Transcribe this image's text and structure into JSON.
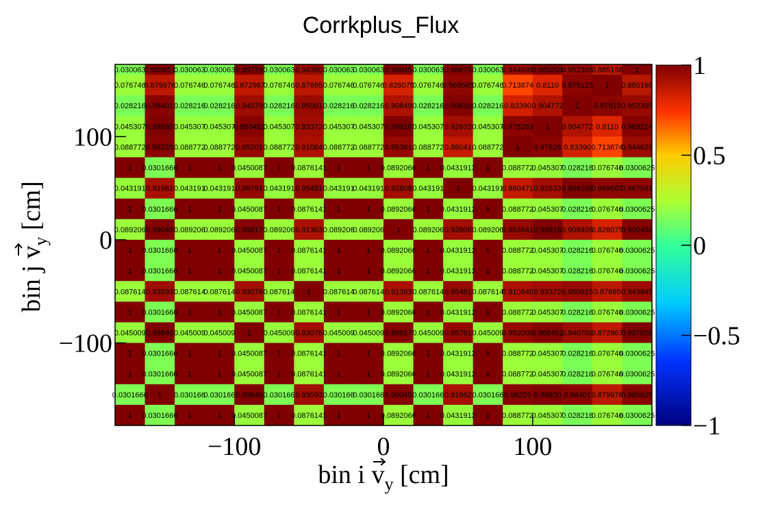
{
  "chart_data": {
    "type": "heatmap",
    "title": "Corrkplus_Flux",
    "xlabel_prefix": "bin i ",
    "xlabel_var": "v",
    "xlabel_sub": "y",
    "xlabel_unit": " [cm]",
    "ylabel_prefix": "bin j ",
    "ylabel_var": "v",
    "ylabel_sub": "y",
    "ylabel_unit": " [cm]",
    "xlim": [
      -180,
      180
    ],
    "ylim": [
      -180,
      170
    ],
    "xticks": [
      -100,
      0,
      100
    ],
    "xtick_labels": [
      "−100",
      "0",
      "100"
    ],
    "yticks": [
      -100,
      0,
      100
    ],
    "ytick_labels": [
      "−100",
      "0",
      "100"
    ],
    "zlim": [
      -1,
      1
    ],
    "colorbar_ticks": [
      -1,
      -0.5,
      0,
      0.5,
      1
    ],
    "colorbar_tick_labels": [
      "−1",
      "−0.5",
      "0",
      "0.5",
      "1"
    ],
    "x_bin_edges": [
      -180,
      -160,
      -140,
      -120,
      -100,
      -80,
      -60,
      -40,
      -20,
      0,
      20,
      40,
      60,
      80,
      100,
      120,
      140,
      160,
      180
    ],
    "y_bin_edges": [
      -180,
      -160,
      -140,
      -120,
      -100,
      -80,
      -60,
      -40,
      -20,
      0,
      20,
      40,
      60,
      80,
      100,
      120,
      140,
      160,
      170
    ],
    "rows_top_to_bottom": [
      [
        "0.030063",
        "0.985651",
        "0.030063",
        "0.030063",
        "0.99779",
        "0.030063",
        "0.94380",
        "0.030063",
        "0.030063",
        "0.99045",
        "0.030063",
        "0.98675",
        "0.030063",
        "0.944699",
        "0.989204",
        "0.952395",
        "0.885166",
        "1"
      ],
      [
        "0.076746",
        "0.879976",
        "0.076746",
        "0.076746",
        "0.872967",
        "0.076746",
        "0.87695",
        "0.076746",
        "0.076746",
        "0.826075",
        "0.076746",
        "0.969565",
        "0.076746",
        "0.713874",
        "0.8110",
        "0.979123",
        "1",
        "0.885166"
      ],
      [
        "0.028216",
        "0.98401",
        "0.028216",
        "0.028216",
        "0.94070",
        "0.028216",
        "0.95091",
        "0.028216",
        "0.028216",
        "0.90849",
        "0.028216",
        "0.99810",
        "0.028216",
        "0.83390",
        "0.904772",
        "1",
        "0.97912",
        "0.952395"
      ],
      [
        "0.045307",
        "0.99930",
        "0.045307",
        "0.045307",
        "0.988482",
        "0.045307",
        "0.93372",
        "0.045307",
        "0.045307",
        "0.99916",
        "0.045307",
        "0.92633",
        "0.045307",
        "0.978263",
        "1",
        "0.904772",
        "0.8110",
        "0.989214"
      ],
      [
        "0.088772",
        "0.98220",
        "0.088772",
        "0.088772",
        "0.95201",
        "0.088772",
        "0.91084",
        "0.088772",
        "0.088772",
        "0.95361",
        "0.088772",
        "0.86041",
        "0.088772",
        "1",
        "0.97826",
        "0.83390",
        "0.713874",
        "0.944629"
      ],
      [
        "1",
        "0.0301666",
        "1",
        "1",
        "0.0450087",
        "1",
        "0.0876141",
        "1",
        "1",
        "0.0892066",
        "1",
        "0.0431912",
        "1",
        "0.088772",
        "0.045307",
        "0.028216",
        "0.076746",
        "0.0300625"
      ],
      [
        "0.043191",
        "0.91962",
        "0.043191",
        "0.043191",
        "0.95791",
        "0.043191",
        "0.95481",
        "0.043191",
        "0.043191",
        "0.92808",
        "0.043191",
        "1",
        "0.043191",
        "0.860471",
        "0.92633",
        "0.998102",
        "0.969565",
        "0.967581"
      ],
      [
        "1",
        "0.0301666",
        "1",
        "1",
        "0.0450087",
        "1",
        "0.0876141",
        "1",
        "1",
        "0.0892066",
        "1",
        "0.0431912",
        "1",
        "0.088772",
        "0.045307",
        "0.028216",
        "0.076746",
        "0.0300625"
      ],
      [
        "0.089206",
        "0.99045",
        "0.089206",
        "0.089206",
        "0.98917",
        "0.089206",
        "0.91363",
        "0.089206",
        "0.089206",
        "1",
        "0.089206",
        "0.92808",
        "0.089206",
        "0.953641",
        "0.99916",
        "0.908409",
        "0.826075",
        "0.990456"
      ],
      [
        "1",
        "0.0301666",
        "1",
        "1",
        "0.0450087",
        "1",
        "0.0876141",
        "1",
        "1",
        "0.0892066",
        "1",
        "0.0431912",
        "1",
        "0.088772",
        "0.045307",
        "0.028216",
        "0.076746",
        "0.0300625"
      ],
      [
        "1",
        "0.0301666",
        "1",
        "1",
        "0.0450087",
        "1",
        "0.0876141",
        "1",
        "1",
        "0.0892066",
        "1",
        "0.0431912",
        "1",
        "0.088772",
        "0.045307",
        "0.028216",
        "0.076746",
        "0.0300625"
      ],
      [
        "0.087614",
        "0.93593",
        "0.087614",
        "0.087614",
        "0.93076",
        "0.087614",
        "1",
        "0.087614",
        "0.087614",
        "0.91363",
        "0.087614",
        "0.95481",
        "0.087614",
        "0.910848",
        "0.93372",
        "0.950915",
        "0.87695",
        "0.943845"
      ],
      [
        "1",
        "0.0301666",
        "1",
        "1",
        "0.0450087",
        "1",
        "0.0876141",
        "1",
        "1",
        "0.0892066",
        "1",
        "0.0431912",
        "1",
        "0.088772",
        "0.045307",
        "0.028216",
        "0.076746",
        "0.0300625"
      ],
      [
        "0.045009",
        "0.99846",
        "0.045009",
        "0.045009",
        "1",
        "0.045009",
        "0.93076",
        "0.045009",
        "0.045009",
        "0.98917",
        "0.045009",
        "0.95791",
        "0.045009",
        "0.952009",
        "0.988482",
        "0.940709",
        "0.872967",
        "0.997028"
      ],
      [
        "1",
        "0.0301666",
        "1",
        "1",
        "0.0450087",
        "1",
        "0.0876141",
        "1",
        "1",
        "0.0892066",
        "1",
        "0.0431912",
        "1",
        "0.088772",
        "0.045307",
        "0.028216",
        "0.076746",
        "0.0300625"
      ],
      [
        "1",
        "0.0301666",
        "1",
        "1",
        "0.0450087",
        "1",
        "0.0876141",
        "1",
        "1",
        "0.0892066",
        "1",
        "0.0431912",
        "1",
        "0.088772",
        "0.045307",
        "0.028216",
        "0.076746",
        "0.0300625"
      ],
      [
        "0.0301666",
        "1",
        "0.030166",
        "0.030166",
        "0.99846",
        "0.030166",
        "0.93593",
        "0.030166",
        "0.030166",
        "0.99045",
        "0.030166",
        "0.91962",
        "0.030166",
        "0.98220",
        "0.99930",
        "0.98401",
        "0.879976",
        "0.985625"
      ],
      [
        "1",
        "0.0301666",
        "1",
        "1",
        "0.0450087",
        "1",
        "0.0876141",
        "1",
        "1",
        "0.0892066",
        "1",
        "0.0431912",
        "1",
        "0.088772",
        "0.045307",
        "0.028216",
        "0.076746",
        "0.0300625"
      ]
    ],
    "grid": false,
    "colormap": "rainbow (dark blue → cyan → green → yellow → red → dark red)"
  }
}
